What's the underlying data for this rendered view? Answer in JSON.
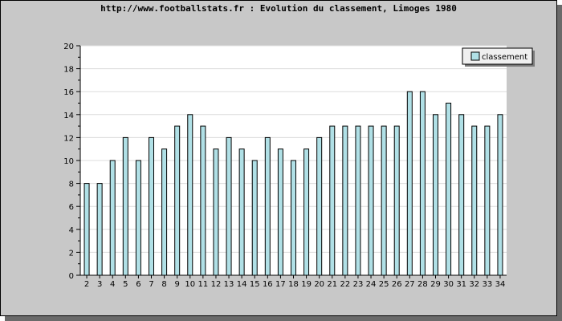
{
  "chart_data": {
    "type": "bar",
    "title": "http://www.footballstats.fr : Evolution du classement, Limoges 1980",
    "categories": [
      "2",
      "3",
      "4",
      "5",
      "6",
      "7",
      "8",
      "9",
      "10",
      "11",
      "12",
      "13",
      "14",
      "15",
      "16",
      "17",
      "18",
      "19",
      "20",
      "21",
      "22",
      "23",
      "24",
      "25",
      "26",
      "27",
      "28",
      "29",
      "30",
      "31",
      "32",
      "33",
      "34"
    ],
    "series": [
      {
        "name": "classement",
        "values": [
          8,
          8,
          10,
          12,
          10,
          12,
          11,
          13,
          14,
          13,
          11,
          12,
          11,
          10,
          12,
          11,
          10,
          11,
          12,
          13,
          13,
          13,
          13,
          13,
          13,
          16,
          16,
          14,
          15,
          14,
          13,
          13,
          14
        ]
      }
    ],
    "ylim": [
      0,
      20
    ],
    "yticks": [
      0,
      2,
      4,
      6,
      8,
      10,
      12,
      14,
      16,
      18,
      20
    ],
    "grid": true,
    "legend_position": "top-right",
    "colors": {
      "bar_fill": "#b0e0e6",
      "bar_stroke": "#000000",
      "frame_bg": "#c8c8c8",
      "plot_bg": "#ffffff",
      "grid": "#dcdcdc"
    }
  }
}
